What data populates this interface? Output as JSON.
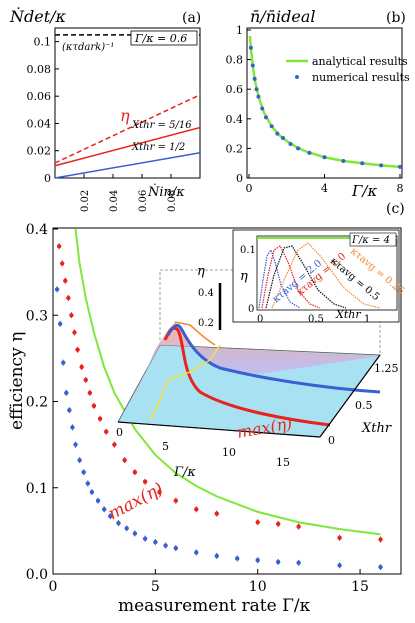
{
  "chart_data": [
    {
      "panel": "(a)",
      "type": "line",
      "ylabel": "Ṅdet/κ",
      "xlabel": "Ṅin/κ",
      "xlim": [
        0,
        0.1
      ],
      "ylim": [
        0,
        0.11
      ],
      "xticks": [
        "0.02",
        "0.04",
        "0.06",
        "0.08"
      ],
      "yticks": [
        "0",
        "0.02",
        "0.04",
        "0.06",
        "0.08",
        "0.1"
      ],
      "legend": "Γ/κ = 0.6",
      "annotation_dark": "(κτdark)⁻¹",
      "annotation_eta": "η",
      "series": [
        {
          "name": "(κτdark)⁻¹",
          "style": "dashed",
          "color": "#000000",
          "x": [
            0,
            0.1
          ],
          "y": [
            0.105,
            0.105
          ]
        },
        {
          "name": "η",
          "style": "dashed",
          "color": "#e8231d",
          "x": [
            0,
            0.1
          ],
          "y": [
            0.011,
            0.061
          ]
        },
        {
          "name": "Xthr = 5/16",
          "style": "solid",
          "color": "#e8231d",
          "x": [
            0,
            0.1
          ],
          "y": [
            0.009,
            0.037
          ]
        },
        {
          "name": "Xthr = 1/2",
          "style": "solid",
          "color": "#3a5fd0",
          "x": [
            0,
            0.1
          ],
          "y": [
            0.0,
            0.0185
          ]
        }
      ],
      "labels": {
        "xthr_a": "Xthr = 5/16",
        "xthr_b": "Xthr = 1/2"
      }
    },
    {
      "panel": "(b)",
      "type": "line",
      "ylabel": "n̄/n̄ideal",
      "xlabel": "Γ/κ",
      "xlim": [
        0,
        8
      ],
      "ylim": [
        0,
        1
      ],
      "xticks": [
        "0",
        "4",
        "8"
      ],
      "yticks": [
        "0",
        "0.2",
        "0.4",
        "0.6",
        "0.8",
        "1"
      ],
      "legend": [
        "analytical results",
        "numerical results"
      ],
      "series": [
        {
          "name": "analytical results",
          "style": "solid",
          "color": "#7ee83a",
          "x": [
            0.05,
            0.1,
            0.2,
            0.3,
            0.5,
            0.8,
            1.2,
            1.6,
            2,
            2.5,
            3,
            4,
            5,
            6,
            7,
            8
          ],
          "y": [
            0.96,
            0.88,
            0.76,
            0.67,
            0.55,
            0.44,
            0.35,
            0.29,
            0.25,
            0.21,
            0.18,
            0.14,
            0.115,
            0.1,
            0.085,
            0.075
          ]
        },
        {
          "name": "numerical results",
          "style": "points",
          "color": "#3a5fd0",
          "x": [
            0.1,
            0.2,
            0.3,
            0.4,
            0.5,
            0.7,
            0.9,
            1.2,
            1.5,
            1.8,
            2.2,
            2.6,
            3.2,
            4,
            5,
            6,
            7,
            8
          ],
          "y": [
            0.88,
            0.76,
            0.67,
            0.6,
            0.55,
            0.47,
            0.41,
            0.35,
            0.3,
            0.27,
            0.23,
            0.2,
            0.17,
            0.14,
            0.115,
            0.1,
            0.085,
            0.075
          ]
        }
      ]
    },
    {
      "panel": "(c)",
      "type": "scatter",
      "ylabel": "efficiency η",
      "xlabel": "measurement rate Γ/κ",
      "xlim": [
        0,
        17
      ],
      "ylim": [
        0,
        0.4
      ],
      "xticks": [
        "0",
        "5",
        "10",
        "15"
      ],
      "yticks": [
        "0.0",
        "0.1",
        "0.2",
        "0.3",
        "0.4"
      ],
      "annotation": "max(η)",
      "series": [
        {
          "name": "green",
          "style": "solid",
          "color": "#7ee83a",
          "x": [
            1.1,
            1.3,
            1.6,
            2,
            2.5,
            3,
            4,
            5,
            6,
            7,
            8,
            10,
            12,
            14,
            16
          ],
          "y": [
            0.4,
            0.36,
            0.32,
            0.28,
            0.24,
            0.21,
            0.168,
            0.138,
            0.117,
            0.102,
            0.09,
            0.072,
            0.06,
            0.052,
            0.046
          ]
        },
        {
          "name": "red",
          "style": "points",
          "color": "#e8231d",
          "x": [
            0.3,
            0.45,
            0.6,
            0.75,
            0.9,
            1.05,
            1.2,
            1.4,
            1.6,
            1.8,
            2.0,
            2.3,
            2.6,
            3.0,
            3.5,
            4.0,
            4.5,
            5.2,
            6.0,
            7.0,
            8.0,
            10.0,
            11.0,
            12.0,
            14.0,
            16.0
          ],
          "y": [
            0.38,
            0.36,
            0.34,
            0.32,
            0.3,
            0.28,
            0.26,
            0.24,
            0.225,
            0.21,
            0.195,
            0.18,
            0.165,
            0.15,
            0.132,
            0.118,
            0.107,
            0.095,
            0.085,
            0.075,
            0.07,
            0.06,
            0.058,
            0.055,
            0.042,
            0.04
          ]
        },
        {
          "name": "blue",
          "style": "points",
          "color": "#3a5fd0",
          "x": [
            0.2,
            0.35,
            0.5,
            0.65,
            0.8,
            0.95,
            1.1,
            1.3,
            1.5,
            1.7,
            1.9,
            2.2,
            2.5,
            2.8,
            3.2,
            3.6,
            4.0,
            4.5,
            5.0,
            5.5,
            6.0,
            7.0,
            8.0,
            9.0,
            10.0,
            11.0,
            12.0,
            14.0,
            16.0
          ],
          "y": [
            0.33,
            0.29,
            0.245,
            0.21,
            0.19,
            0.17,
            0.15,
            0.132,
            0.118,
            0.105,
            0.095,
            0.085,
            0.075,
            0.067,
            0.059,
            0.053,
            0.047,
            0.041,
            0.037,
            0.033,
            0.03,
            0.025,
            0.021,
            0.018,
            0.016,
            0.014,
            0.013,
            0.01,
            0.008
          ]
        }
      ]
    },
    {
      "panel": "(c) inset",
      "type": "line",
      "ylabel": "η",
      "xlabel": "Xthr",
      "xlim": [
        0,
        1.25
      ],
      "ylim": [
        0,
        0.13
      ],
      "xticks": [
        "0",
        "0.5",
        "1"
      ],
      "yticks": [
        "0",
        "0.1"
      ],
      "legend": "Γ/κ = 4",
      "series": [
        {
          "name": "κτavg = 2.0",
          "color": "#3a5fd0"
        },
        {
          "name": "κτavg = 1.0",
          "color": "#e8231d"
        },
        {
          "name": "κτavg = 0.5",
          "color": "#111111"
        },
        {
          "name": "κτavg = 0.25",
          "color": "#f08a30"
        }
      ]
    },
    {
      "panel": "(c) 3D surface",
      "type": "area",
      "zlabel": "η",
      "xlabel": "Γ/κ",
      "ylabel": "Xthr",
      "zticks": [
        "0.4",
        "0.2"
      ],
      "xticks": [
        "0",
        "5",
        "10",
        "15"
      ],
      "yticks": [
        "0",
        "0.5",
        "1.25"
      ],
      "annotation": "max(η)"
    }
  ]
}
